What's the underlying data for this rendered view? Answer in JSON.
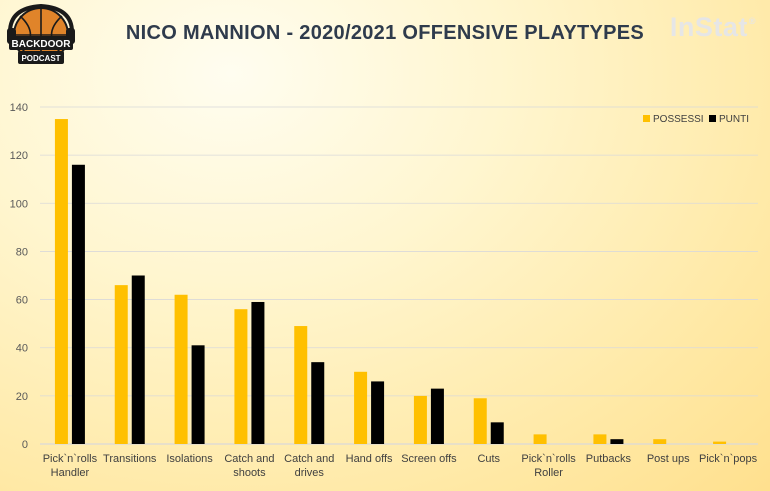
{
  "header": {
    "title": "NICO MANNION - 2020/2021 OFFENSIVE PLAYTYPES",
    "brand": "InStat",
    "brand_mark": "®",
    "logo_top": "BACKDOOR",
    "logo_bottom": "PODCAST"
  },
  "colors": {
    "possessi": "#FFC000",
    "punti": "#000000",
    "grid": "#d9d9d9"
  },
  "chart_data": {
    "type": "bar",
    "title": "NICO MANNION - 2020/2021 OFFENSIVE PLAYTYPES",
    "xlabel": "",
    "ylabel": "",
    "ylim": [
      0,
      140
    ],
    "yticks": [
      0,
      20,
      40,
      60,
      80,
      100,
      120,
      140
    ],
    "grid": true,
    "legend_position": "top-right",
    "categories": [
      [
        "Pick`n`rolls",
        "Handler"
      ],
      [
        "Transitions"
      ],
      [
        "Isolations"
      ],
      [
        "Catch and",
        "shoots"
      ],
      [
        "Catch and",
        "drives"
      ],
      [
        "Hand offs"
      ],
      [
        "Screen offs"
      ],
      [
        "Cuts"
      ],
      [
        "Pick`n`rolls",
        "Roller"
      ],
      [
        "Putbacks"
      ],
      [
        "Post ups"
      ],
      [
        "Pick`n`pops"
      ]
    ],
    "series": [
      {
        "name": "POSSESSI",
        "values": [
          135,
          66,
          62,
          56,
          49,
          30,
          20,
          19,
          4,
          4,
          2,
          1
        ]
      },
      {
        "name": "PUNTI",
        "values": [
          116,
          70,
          41,
          59,
          34,
          26,
          23,
          9,
          0,
          2,
          0,
          0
        ]
      }
    ]
  }
}
